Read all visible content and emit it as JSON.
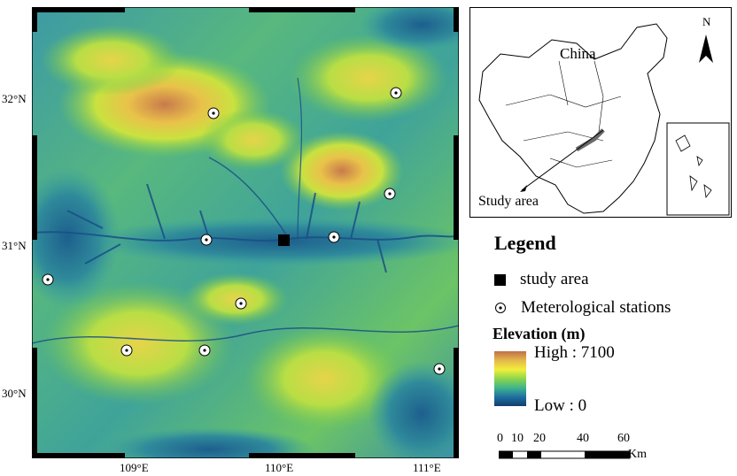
{
  "map": {
    "lat_labels": [
      "32°N",
      "31°N",
      "30°N"
    ],
    "lon_labels": [
      "109°E",
      "110°E",
      "111°E"
    ],
    "study_area_marker": "black-square",
    "stations_count": 11
  },
  "inset": {
    "country_label": "China",
    "north_label": "N",
    "pointer_label": "Study area"
  },
  "legend": {
    "title": "Legend",
    "study_area_label": "study area",
    "stations_label": "Meterological stations",
    "elevation_title": "Elevation (m)",
    "high_label": "High : 7100",
    "low_label": "Low : 0",
    "ramp_colors": [
      "#c0704a",
      "#e4b84a",
      "#f2ee3c",
      "#8cd64a",
      "#3fb48c",
      "#1f6fa2",
      "#123f6e"
    ]
  },
  "scale_bar": {
    "ticks": [
      "0",
      "10",
      "20",
      "40",
      "60"
    ],
    "unit": "Km"
  }
}
